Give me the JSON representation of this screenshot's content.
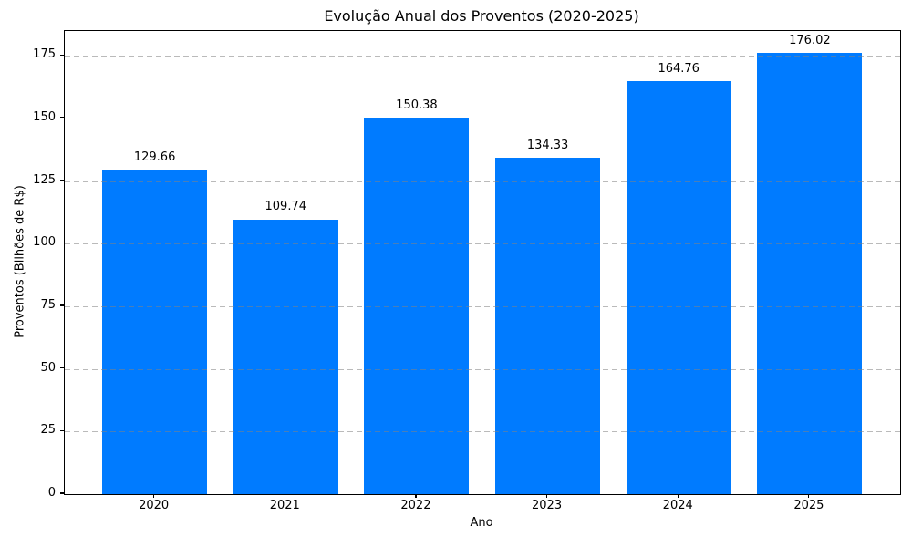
{
  "chart_data": {
    "type": "bar",
    "title": "Evolução Anual dos Proventos (2020-2025)",
    "xlabel": "Ano",
    "ylabel": "Proventos (Bilhões de R$)",
    "categories": [
      "2020",
      "2021",
      "2022",
      "2023",
      "2024",
      "2025"
    ],
    "values": [
      129.66,
      109.74,
      150.38,
      134.33,
      164.76,
      176.02
    ],
    "value_labels": [
      "129.66",
      "109.74",
      "150.38",
      "134.33",
      "164.76",
      "176.02"
    ],
    "yticks": [
      0,
      25,
      50,
      75,
      100,
      125,
      150,
      175
    ],
    "ytick_labels": [
      "0",
      "25",
      "50",
      "75",
      "100",
      "125",
      "150",
      "175"
    ],
    "ylim": [
      0,
      184.9
    ],
    "bar_color": "#007bff",
    "grid": {
      "axis": "y",
      "linestyle": "dashed",
      "color": "#b8b8b8",
      "above_bars": true
    },
    "legend": null,
    "background": "#ffffff"
  }
}
